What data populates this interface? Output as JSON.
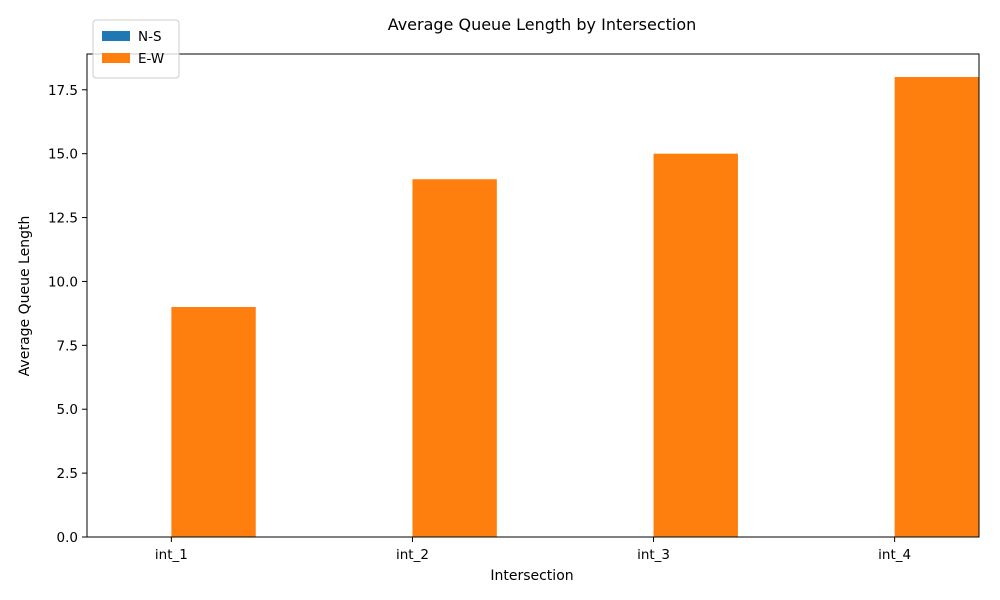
{
  "chart_data": {
    "type": "bar",
    "title": "Average Queue Length by Intersection",
    "xlabel": "Intersection",
    "ylabel": "Average Queue Length",
    "categories": [
      "int_1",
      "int_2",
      "int_3",
      "int_4"
    ],
    "series": [
      {
        "name": "N-S",
        "values": [
          0,
          0,
          0,
          0
        ],
        "color": "#1f77b4"
      },
      {
        "name": "E-W",
        "values": [
          9,
          14,
          15,
          18
        ],
        "color": "#ff7f0e"
      }
    ],
    "ylim": [
      0,
      18.9
    ],
    "yticks": [
      "0.0",
      "2.5",
      "5.0",
      "7.5",
      "10.0",
      "12.5",
      "15.0",
      "17.5"
    ],
    "grid": false,
    "legend_position": "top-left"
  }
}
